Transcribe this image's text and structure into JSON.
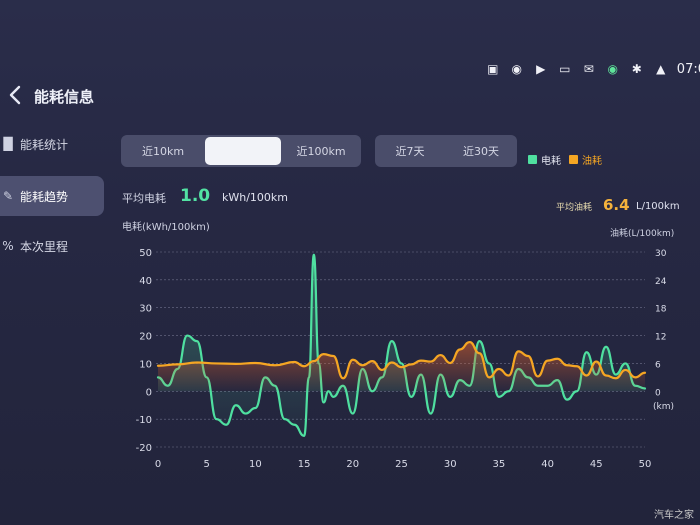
{
  "status_bar": {
    "icons": [
      "shopping-bag-icon",
      "camera-icon",
      "video-icon",
      "rect-icon",
      "mail-icon",
      "badge-icon",
      "bluetooth-icon",
      "wifi-icon"
    ],
    "time": "07:0"
  },
  "header": {
    "title": "能耗信息"
  },
  "sidebar": {
    "items": [
      {
        "label": "能耗统计",
        "icon": "bar-chart-icon"
      },
      {
        "label": "能耗趋势",
        "icon": "trend-icon"
      },
      {
        "label": "本次里程",
        "icon": "percent-icon"
      }
    ],
    "active_index": 1
  },
  "range_tabs": {
    "group1": [
      "近10km",
      "",
      "近100km"
    ],
    "group1_selected": 1,
    "group2": [
      "近7天",
      "近30天"
    ]
  },
  "legend": [
    {
      "label": "电耗",
      "color": "#4fe0a0"
    },
    {
      "label": "油耗",
      "color": "#f5a623"
    }
  ],
  "summary": {
    "avg_elec_label": "平均电耗",
    "avg_elec_value": "1.0",
    "avg_elec_unit": "kWh/100km",
    "avg_fuel_label": "平均油耗",
    "avg_fuel_value": "6.4",
    "avg_fuel_unit": "L/100km"
  },
  "axis_labels": {
    "left": "电耗(kWh/100km)",
    "right": "油耗(L/100km)",
    "x_unit": "(km)"
  },
  "chart_data": {
    "type": "line",
    "x_ticks": [
      0,
      5,
      10,
      15,
      20,
      25,
      30,
      35,
      40,
      45,
      50
    ],
    "y_left_ticks": [
      50,
      40,
      30,
      20,
      10,
      0,
      -10,
      -20
    ],
    "y_right_ticks": [
      30,
      24,
      18,
      12,
      6,
      0
    ],
    "xlim": [
      0,
      50
    ],
    "ylim_left": [
      -20,
      50
    ],
    "ylim_right": [
      -12,
      30
    ],
    "series": [
      {
        "name": "电耗",
        "axis": "left",
        "color": "#4fe0a0",
        "x": [
          0,
          1,
          2,
          3,
          4,
          5,
          6,
          7,
          8,
          9,
          10,
          11,
          12,
          13,
          14,
          15,
          15.5,
          16,
          16.5,
          17,
          17.5,
          18,
          19,
          20,
          21,
          22,
          23,
          24,
          25,
          26,
          27,
          28,
          29,
          30,
          31,
          32,
          33,
          34,
          35,
          36,
          37,
          38,
          39,
          40,
          41,
          42,
          43,
          44,
          45,
          46,
          47,
          48,
          49,
          50
        ],
        "values": [
          5,
          2,
          8,
          20,
          18,
          5,
          -10,
          -12,
          -5,
          -8,
          -6,
          5,
          2,
          -10,
          -12,
          -16,
          5,
          49,
          10,
          -4,
          0,
          -2,
          2,
          -8,
          8,
          0,
          5,
          18,
          10,
          -2,
          6,
          -8,
          6,
          -2,
          4,
          2,
          18,
          10,
          -2,
          0,
          8,
          5,
          2,
          2,
          4,
          -3,
          0,
          14,
          6,
          16,
          6,
          10,
          2,
          1
        ]
      },
      {
        "name": "油耗",
        "axis": "right",
        "color": "#f5a623",
        "x": [
          0,
          2,
          4,
          6,
          8,
          10,
          12,
          14,
          15,
          16,
          17,
          18,
          19,
          20,
          21,
          22,
          23,
          24,
          25,
          26,
          27,
          28,
          29,
          30,
          31,
          32,
          33,
          34,
          35,
          36,
          37,
          38,
          39,
          40,
          41,
          42,
          43,
          44,
          45,
          46,
          47,
          48,
          49,
          50
        ],
        "values": [
          5.5,
          5.8,
          6.2,
          6.0,
          5.9,
          6.1,
          5.6,
          6.3,
          5.4,
          6.5,
          8.0,
          7.6,
          2.8,
          6.8,
          5.6,
          6.5,
          4.6,
          6.2,
          5.2,
          5.8,
          6.6,
          6.4,
          7.8,
          6.1,
          9.0,
          10.6,
          8.2,
          3.0,
          4.8,
          3.4,
          8.6,
          7.6,
          3.2,
          6.6,
          7.0,
          5.6,
          5.4,
          3.4,
          6.4,
          3.4,
          2.8,
          4.6,
          3.0,
          4.0
        ]
      }
    ]
  },
  "watermark": "汽车之家"
}
